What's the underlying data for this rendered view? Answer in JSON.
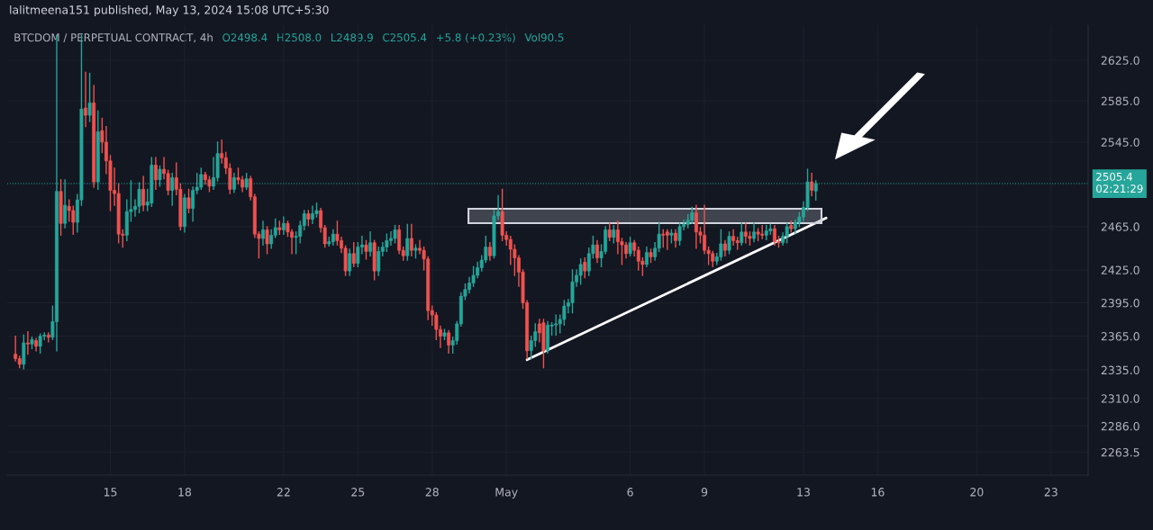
{
  "chart_data": {
    "type": "candlestick",
    "title": "lalitmeena151 published, May 13, 2024 15:08 UTC+5:30",
    "subtitle": "BTCDOM / PERPETUAL CONTRACT, 4h",
    "annotations": [
      "O2498.4",
      "H2508.0",
      "L2489.9",
      "C2505.4",
      "+5.8 (+0.23%)",
      "Vol90.5"
    ],
    "log": true,
    "grid": true,
    "legend": false,
    "ylim": [
      2244,
      2660
    ],
    "yticks": [
      {
        "value": 2263.5,
        "label": "2263.5"
      },
      {
        "value": 2286,
        "label": "2286.0"
      },
      {
        "value": 2310,
        "label": "2310.0"
      },
      {
        "value": 2335,
        "label": "2335.0"
      },
      {
        "value": 2365,
        "label": "2365.0"
      },
      {
        "value": 2395,
        "label": "2395.0"
      },
      {
        "value": 2425,
        "label": "2425.0"
      },
      {
        "value": 2465,
        "label": "2465.0"
      },
      {
        "value": 2545,
        "label": "2545.0"
      },
      {
        "value": 2585,
        "label": "2585.0"
      },
      {
        "value": 2625,
        "label": "2625.0"
      }
    ],
    "xlim": [
      "2024-04-10T20:00",
      "2024-05-24T12:00"
    ],
    "xticks": [
      {
        "value": "2024-04-15",
        "label": "15"
      },
      {
        "value": "2024-04-18",
        "label": "18"
      },
      {
        "value": "2024-04-22",
        "label": "22"
      },
      {
        "value": "2024-04-25",
        "label": "25"
      },
      {
        "value": "2024-04-28",
        "label": "28"
      },
      {
        "value": "2024-05-01",
        "label": "May"
      },
      {
        "value": "2024-05-06",
        "label": "6"
      },
      {
        "value": "2024-05-09",
        "label": "9"
      },
      {
        "value": "2024-05-13",
        "label": "13"
      },
      {
        "value": "2024-05-16",
        "label": "16"
      },
      {
        "value": "2024-05-20",
        "label": "20"
      },
      {
        "value": "2024-05-23",
        "label": "23"
      }
    ],
    "ref_lines": [
      {
        "axis": "y",
        "value": 2505.4,
        "label": "2505.4\n02:21:29",
        "color": "#26a69a",
        "line_style": "dotted"
      }
    ],
    "series": [
      {
        "type": "line",
        "color": "#ffffff",
        "x": [
          "2024-05-01T20:00",
          "2024-05-13T22:00"
        ],
        "values": [
          2344,
          2473
        ]
      }
    ],
    "x": [
      "2024-04-11T04:00",
      "2024-04-11T08:00",
      "2024-04-11T12:00",
      "2024-04-11T16:00",
      "2024-04-11T20:00",
      "2024-04-12T00:00",
      "2024-04-12T04:00",
      "2024-04-12T08:00",
      "2024-04-12T12:00",
      "2024-04-12T16:00",
      "2024-04-12T20:00",
      "2024-04-13T00:00",
      "2024-04-13T04:00",
      "2024-04-13T08:00",
      "2024-04-13T12:00",
      "2024-04-13T16:00",
      "2024-04-13T20:00",
      "2024-04-14T00:00",
      "2024-04-14T04:00",
      "2024-04-14T08:00",
      "2024-04-14T12:00",
      "2024-04-14T16:00",
      "2024-04-14T20:00",
      "2024-04-15T00:00",
      "2024-04-15T04:00",
      "2024-04-15T08:00",
      "2024-04-15T12:00",
      "2024-04-15T16:00",
      "2024-04-15T20:00",
      "2024-04-16T00:00",
      "2024-04-16T04:00",
      "2024-04-16T08:00",
      "2024-04-16T12:00",
      "2024-04-16T16:00",
      "2024-04-16T20:00",
      "2024-04-17T00:00",
      "2024-04-17T04:00",
      "2024-04-17T08:00",
      "2024-04-17T12:00",
      "2024-04-17T16:00",
      "2024-04-17T20:00",
      "2024-04-18T00:00",
      "2024-04-18T04:00",
      "2024-04-18T08:00",
      "2024-04-18T12:00",
      "2024-04-18T16:00",
      "2024-04-18T20:00",
      "2024-04-19T00:00",
      "2024-04-19T04:00",
      "2024-04-19T08:00",
      "2024-04-19T12:00",
      "2024-04-19T16:00",
      "2024-04-19T20:00",
      "2024-04-20T00:00",
      "2024-04-20T04:00",
      "2024-04-20T08:00",
      "2024-04-20T12:00",
      "2024-04-20T16:00",
      "2024-04-20T20:00",
      "2024-04-21T00:00",
      "2024-04-21T04:00",
      "2024-04-21T08:00",
      "2024-04-21T12:00",
      "2024-04-21T16:00",
      "2024-04-21T20:00",
      "2024-04-22T00:00",
      "2024-04-22T04:00",
      "2024-04-22T08:00",
      "2024-04-22T12:00",
      "2024-04-22T16:00",
      "2024-04-22T20:00",
      "2024-04-23T00:00",
      "2024-04-23T04:00",
      "2024-04-23T08:00",
      "2024-04-23T12:00",
      "2024-04-23T16:00",
      "2024-04-23T20:00",
      "2024-04-24T00:00",
      "2024-04-24T04:00",
      "2024-04-24T08:00",
      "2024-04-24T12:00",
      "2024-04-24T16:00",
      "2024-04-24T20:00",
      "2024-04-25T00:00",
      "2024-04-25T04:00",
      "2024-04-25T08:00",
      "2024-04-25T12:00",
      "2024-04-25T16:00",
      "2024-04-25T20:00",
      "2024-04-26T00:00",
      "2024-04-26T04:00",
      "2024-04-26T08:00",
      "2024-04-26T12:00",
      "2024-04-26T16:00",
      "2024-04-26T20:00",
      "2024-04-27T00:00",
      "2024-04-27T04:00",
      "2024-04-27T08:00",
      "2024-04-27T12:00",
      "2024-04-27T16:00",
      "2024-04-27T20:00",
      "2024-04-28T00:00",
      "2024-04-28T04:00",
      "2024-04-28T08:00",
      "2024-04-28T12:00",
      "2024-04-28T16:00",
      "2024-04-28T20:00",
      "2024-04-29T00:00",
      "2024-04-29T04:00",
      "2024-04-29T08:00",
      "2024-04-29T12:00",
      "2024-04-29T16:00",
      "2024-04-29T20:00",
      "2024-04-30T00:00",
      "2024-04-30T04:00",
      "2024-04-30T08:00",
      "2024-04-30T12:00",
      "2024-04-30T16:00",
      "2024-04-30T20:00",
      "2024-05-01T00:00",
      "2024-05-01T04:00",
      "2024-05-01T08:00",
      "2024-05-01T12:00",
      "2024-05-01T16:00",
      "2024-05-01T20:00",
      "2024-05-02T00:00",
      "2024-05-02T04:00",
      "2024-05-02T08:00",
      "2024-05-02T12:00",
      "2024-05-02T16:00",
      "2024-05-02T20:00",
      "2024-05-03T00:00",
      "2024-05-03T04:00",
      "2024-05-03T08:00",
      "2024-05-03T12:00",
      "2024-05-03T16:00",
      "2024-05-03T20:00",
      "2024-05-04T00:00",
      "2024-05-04T04:00",
      "2024-05-04T08:00",
      "2024-05-04T12:00",
      "2024-05-04T16:00",
      "2024-05-04T20:00",
      "2024-05-05T00:00",
      "2024-05-05T04:00",
      "2024-05-05T08:00",
      "2024-05-05T12:00",
      "2024-05-05T16:00",
      "2024-05-05T20:00",
      "2024-05-06T00:00",
      "2024-05-06T04:00",
      "2024-05-06T08:00",
      "2024-05-06T12:00",
      "2024-05-06T16:00",
      "2024-05-06T20:00",
      "2024-05-07T00:00",
      "2024-05-07T04:00",
      "2024-05-07T08:00",
      "2024-05-07T12:00",
      "2024-05-07T16:00",
      "2024-05-07T20:00",
      "2024-05-08T00:00",
      "2024-05-08T04:00",
      "2024-05-08T08:00",
      "2024-05-08T12:00",
      "2024-05-08T16:00",
      "2024-05-08T20:00",
      "2024-05-09T00:00",
      "2024-05-09T04:00",
      "2024-05-09T08:00",
      "2024-05-09T12:00",
      "2024-05-09T16:00",
      "2024-05-09T20:00",
      "2024-05-10T00:00",
      "2024-05-10T04:00",
      "2024-05-10T08:00",
      "2024-05-10T12:00",
      "2024-05-10T16:00",
      "2024-05-10T20:00",
      "2024-05-11T00:00",
      "2024-05-11T04:00",
      "2024-05-11T08:00",
      "2024-05-11T12:00",
      "2024-05-11T16:00",
      "2024-05-11T20:00",
      "2024-05-12T00:00",
      "2024-05-12T04:00",
      "2024-05-12T08:00",
      "2024-05-12T12:00",
      "2024-05-12T16:00",
      "2024-05-12T20:00",
      "2024-05-13T00:00",
      "2024-05-13T04:00",
      "2024-05-13T08:00",
      "2024-05-13T12:00"
    ],
    "ohlc": [
      [
        2349,
        2365,
        2343,
        2345
      ],
      [
        2345,
        2347,
        2337,
        2340
      ],
      [
        2340,
        2366,
        2336,
        2359
      ],
      [
        2359,
        2369,
        2349,
        2358
      ],
      [
        2358,
        2364,
        2354,
        2362
      ],
      [
        2361,
        2363,
        2352,
        2356
      ],
      [
        2356,
        2367,
        2350,
        2365
      ],
      [
        2365,
        2368,
        2362,
        2366
      ],
      [
        2366,
        2368,
        2360,
        2364
      ],
      [
        2364,
        2392,
        2362,
        2378
      ],
      [
        2378,
        2650,
        2352,
        2498
      ],
      [
        2498,
        2509,
        2457,
        2468
      ],
      [
        2468,
        2509,
        2464,
        2485
      ],
      [
        2484,
        2490,
        2470,
        2480
      ],
      [
        2480,
        2484,
        2458,
        2469
      ],
      [
        2469,
        2495,
        2460,
        2490
      ],
      [
        2490,
        2650,
        2485,
        2577
      ],
      [
        2578,
        2613,
        2560,
        2571
      ],
      [
        2571,
        2612,
        2565,
        2583
      ],
      [
        2583,
        2600,
        2502,
        2507
      ],
      [
        2507,
        2575,
        2500,
        2555
      ],
      [
        2556,
        2568,
        2535,
        2545
      ],
      [
        2545,
        2560,
        2515,
        2527
      ],
      [
        2527,
        2532,
        2480,
        2499
      ],
      [
        2499,
        2520,
        2485,
        2496
      ],
      [
        2496,
        2505,
        2450,
        2458
      ],
      [
        2458,
        2462,
        2446,
        2457
      ],
      [
        2457,
        2490,
        2452,
        2479
      ],
      [
        2479,
        2508,
        2470,
        2481
      ],
      [
        2481,
        2490,
        2475,
        2484
      ],
      [
        2484,
        2506,
        2478,
        2500
      ],
      [
        2500,
        2512,
        2480,
        2485
      ],
      [
        2485,
        2500,
        2480,
        2488
      ],
      [
        2487,
        2530,
        2484,
        2523
      ],
      [
        2523,
        2530,
        2500,
        2509
      ],
      [
        2509,
        2522,
        2503,
        2519
      ],
      [
        2519,
        2530,
        2510,
        2515
      ],
      [
        2515,
        2518,
        2495,
        2499
      ],
      [
        2499,
        2515,
        2485,
        2511
      ],
      [
        2511,
        2525,
        2495,
        2500
      ],
      [
        2500,
        2505,
        2462,
        2465
      ],
      [
        2465,
        2495,
        2460,
        2492
      ],
      [
        2492,
        2500,
        2478,
        2482
      ],
      [
        2482,
        2502,
        2470,
        2499
      ],
      [
        2499,
        2515,
        2496,
        2502
      ],
      [
        2502,
        2520,
        2500,
        2514
      ],
      [
        2514,
        2516,
        2505,
        2509
      ],
      [
        2509,
        2512,
        2498,
        2503
      ],
      [
        2503,
        2530,
        2500,
        2511
      ],
      [
        2511,
        2545,
        2508,
        2534
      ],
      [
        2534,
        2547,
        2525,
        2530
      ],
      [
        2530,
        2535,
        2515,
        2520
      ],
      [
        2520,
        2524,
        2496,
        2500
      ],
      [
        2500,
        2515,
        2497,
        2511
      ],
      [
        2511,
        2520,
        2505,
        2509
      ],
      [
        2509,
        2512,
        2498,
        2502
      ],
      [
        2502,
        2515,
        2500,
        2510
      ],
      [
        2510,
        2512,
        2490,
        2493
      ],
      [
        2493,
        2495,
        2455,
        2458
      ],
      [
        2458,
        2460,
        2436,
        2454
      ],
      [
        2454,
        2470,
        2448,
        2462
      ],
      [
        2462,
        2465,
        2440,
        2449
      ],
      [
        2449,
        2462,
        2445,
        2457
      ],
      [
        2457,
        2472,
        2455,
        2464
      ],
      [
        2464,
        2470,
        2458,
        2462
      ],
      [
        2462,
        2474,
        2458,
        2468
      ],
      [
        2468,
        2470,
        2456,
        2460
      ],
      [
        2460,
        2462,
        2440,
        2455
      ],
      [
        2455,
        2460,
        2440,
        2456
      ],
      [
        2456,
        2470,
        2450,
        2466
      ],
      [
        2466,
        2480,
        2462,
        2477
      ],
      [
        2477,
        2480,
        2466,
        2472
      ],
      [
        2472,
        2484,
        2468,
        2477
      ],
      [
        2477,
        2487,
        2474,
        2480
      ],
      [
        2480,
        2482,
        2460,
        2464
      ],
      [
        2464,
        2466,
        2446,
        2449
      ],
      [
        2449,
        2455,
        2447,
        2451
      ],
      [
        2451,
        2462,
        2448,
        2458
      ],
      [
        2458,
        2470,
        2448,
        2452
      ],
      [
        2452,
        2455,
        2441,
        2445
      ],
      [
        2445,
        2447,
        2420,
        2424
      ],
      [
        2424,
        2444,
        2420,
        2440
      ],
      [
        2440,
        2450,
        2428,
        2431
      ],
      [
        2431,
        2450,
        2428,
        2446
      ],
      [
        2446,
        2456,
        2440,
        2448
      ],
      [
        2448,
        2452,
        2435,
        2442
      ],
      [
        2442,
        2460,
        2438,
        2450
      ],
      [
        2450,
        2452,
        2416,
        2424
      ],
      [
        2424,
        2446,
        2420,
        2442
      ],
      [
        2442,
        2450,
        2438,
        2446
      ],
      [
        2446,
        2458,
        2442,
        2452
      ],
      [
        2452,
        2460,
        2448,
        2454
      ],
      [
        2454,
        2466,
        2450,
        2462
      ],
      [
        2462,
        2466,
        2440,
        2443
      ],
      [
        2443,
        2446,
        2434,
        2438
      ],
      [
        2438,
        2467,
        2434,
        2454
      ],
      [
        2454,
        2467,
        2438,
        2443
      ],
      [
        2443,
        2448,
        2436,
        2445
      ],
      [
        2445,
        2452,
        2440,
        2443
      ],
      [
        2443,
        2446,
        2425,
        2435
      ],
      [
        2435,
        2437,
        2380,
        2388
      ],
      [
        2388,
        2392,
        2375,
        2384
      ],
      [
        2384,
        2386,
        2362,
        2371
      ],
      [
        2371,
        2374,
        2355,
        2365
      ],
      [
        2365,
        2371,
        2362,
        2368
      ],
      [
        2368,
        2370,
        2350,
        2357
      ],
      [
        2357,
        2364,
        2350,
        2361
      ],
      [
        2361,
        2378,
        2358,
        2376
      ],
      [
        2376,
        2404,
        2374,
        2401
      ],
      [
        2401,
        2412,
        2398,
        2407
      ],
      [
        2407,
        2418,
        2404,
        2413
      ],
      [
        2413,
        2428,
        2410,
        2420
      ],
      [
        2420,
        2432,
        2418,
        2427
      ],
      [
        2427,
        2438,
        2424,
        2434
      ],
      [
        2434,
        2456,
        2432,
        2446
      ],
      [
        2446,
        2450,
        2434,
        2438
      ],
      [
        2438,
        2480,
        2436,
        2475
      ],
      [
        2475,
        2494,
        2472,
        2479
      ],
      [
        2479,
        2500,
        2452,
        2457
      ],
      [
        2457,
        2460,
        2448,
        2453
      ],
      [
        2453,
        2456,
        2430,
        2444
      ],
      [
        2444,
        2448,
        2420,
        2436
      ],
      [
        2436,
        2438,
        2410,
        2423
      ],
      [
        2423,
        2425,
        2390,
        2395
      ],
      [
        2395,
        2397,
        2345,
        2352
      ],
      [
        2352,
        2365,
        2345,
        2361
      ],
      [
        2361,
        2376,
        2356,
        2369
      ],
      [
        2376,
        2380,
        2360,
        2368
      ],
      [
        2377,
        2380,
        2337,
        2352
      ],
      [
        2352,
        2378,
        2350,
        2375
      ],
      [
        2374,
        2377,
        2366,
        2375
      ],
      [
        2375,
        2384,
        2366,
        2376
      ],
      [
        2376,
        2384,
        2368,
        2380
      ],
      [
        2380,
        2397,
        2375,
        2392
      ],
      [
        2392,
        2398,
        2386,
        2395
      ],
      [
        2395,
        2425,
        2386,
        2414
      ],
      [
        2414,
        2425,
        2410,
        2420
      ],
      [
        2420,
        2435,
        2412,
        2430
      ],
      [
        2432,
        2436,
        2418,
        2424
      ],
      [
        2424,
        2445,
        2420,
        2440
      ],
      [
        2440,
        2456,
        2436,
        2448
      ],
      [
        2448,
        2452,
        2432,
        2436
      ],
      [
        2436,
        2448,
        2428,
        2442
      ],
      [
        2442,
        2465,
        2440,
        2462
      ],
      [
        2462,
        2468,
        2452,
        2455
      ],
      [
        2455,
        2466,
        2450,
        2462
      ],
      [
        2462,
        2470,
        2440,
        2451
      ],
      [
        2451,
        2454,
        2430,
        2448
      ],
      [
        2448,
        2450,
        2436,
        2440
      ],
      [
        2440,
        2455,
        2438,
        2450
      ],
      [
        2450,
        2452,
        2438,
        2443
      ],
      [
        2443,
        2446,
        2425,
        2433
      ],
      [
        2433,
        2436,
        2420,
        2430
      ],
      [
        2430,
        2446,
        2428,
        2441
      ],
      [
        2441,
        2444,
        2432,
        2437
      ],
      [
        2437,
        2450,
        2434,
        2445
      ],
      [
        2445,
        2469,
        2442,
        2458
      ],
      [
        2458,
        2462,
        2446,
        2457
      ],
      [
        2460,
        2462,
        2444,
        2457
      ],
      [
        2457,
        2462,
        2450,
        2459
      ],
      [
        2459,
        2462,
        2446,
        2452
      ],
      [
        2452,
        2468,
        2448,
        2465
      ],
      [
        2465,
        2471,
        2462,
        2467
      ],
      [
        2467,
        2476,
        2464,
        2471
      ],
      [
        2471,
        2483,
        2468,
        2478
      ],
      [
        2478,
        2485,
        2445,
        2460
      ],
      [
        2460,
        2464,
        2450,
        2457
      ],
      [
        2457,
        2485,
        2440,
        2443
      ],
      [
        2443,
        2446,
        2430,
        2440
      ],
      [
        2440,
        2442,
        2428,
        2433
      ],
      [
        2433,
        2440,
        2430,
        2437
      ],
      [
        2437,
        2462,
        2434,
        2449
      ],
      [
        2449,
        2452,
        2438,
        2443
      ],
      [
        2443,
        2460,
        2440,
        2456
      ],
      [
        2456,
        2462,
        2448,
        2452
      ],
      [
        2452,
        2455,
        2444,
        2450
      ],
      [
        2450,
        2468,
        2448,
        2460
      ],
      [
        2460,
        2468,
        2450,
        2456
      ],
      [
        2456,
        2460,
        2448,
        2454
      ],
      [
        2454,
        2468,
        2451,
        2460
      ],
      [
        2460,
        2463,
        2452,
        2458
      ],
      [
        2458,
        2466,
        2454,
        2457
      ],
      [
        2457,
        2466,
        2453,
        2461
      ],
      [
        2461,
        2467,
        2458,
        2463
      ],
      [
        2463,
        2466,
        2448,
        2451
      ],
      [
        2451,
        2456,
        2446,
        2450
      ],
      [
        2450,
        2459,
        2448,
        2456
      ],
      [
        2456,
        2468,
        2450,
        2465
      ],
      [
        2466,
        2470,
        2460,
        2463
      ],
      [
        2463,
        2471,
        2459,
        2469
      ],
      [
        2469,
        2478,
        2465,
        2474
      ],
      [
        2474,
        2488,
        2470,
        2483
      ],
      [
        2483,
        2519,
        2480,
        2507
      ],
      [
        2507,
        2515,
        2494,
        2499
      ],
      [
        2498.4,
        2508.0,
        2489.9,
        2505.4
      ]
    ]
  }
}
